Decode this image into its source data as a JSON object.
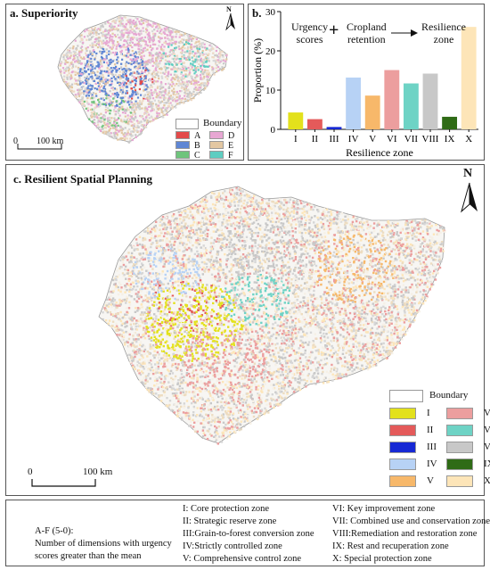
{
  "panel_a": {
    "title": "a. Superiority",
    "north": "N",
    "scale_zero": "0",
    "scale_label": "100 km",
    "legend": {
      "boundary": "Boundary",
      "items": [
        {
          "label": "A",
          "color": "#e34a4a"
        },
        {
          "label": "D",
          "color": "#e7a7d3"
        },
        {
          "label": "B",
          "color": "#5f86d4"
        },
        {
          "label": "E",
          "color": "#e3c7a2"
        },
        {
          "label": "C",
          "color": "#6fc47c"
        },
        {
          "label": "F",
          "color": "#5ecdc1"
        }
      ]
    }
  },
  "panel_b": {
    "title": "b.",
    "flow": {
      "step1": "Urgency\nscores",
      "plus": "+",
      "step2": "Cropland\nretention",
      "step3": "Resilience\nzone"
    },
    "chart_data": {
      "type": "bar",
      "categories": [
        "I",
        "II",
        "III",
        "IV",
        "V",
        "VI",
        "VII",
        "VIII",
        "IX",
        "X"
      ],
      "values": [
        4.3,
        2.6,
        0.6,
        13.2,
        8.6,
        15.1,
        11.7,
        14.2,
        3.2,
        26.1
      ],
      "colors": [
        "#e3e11c",
        "#e45a5a",
        "#1628d4",
        "#b7d2f5",
        "#f7b86a",
        "#ec9e9e",
        "#6ed3c5",
        "#c8c8c8",
        "#2f6b16",
        "#fde5b8"
      ],
      "xlabel": "Resilience zone",
      "ylabel": "Proportion (%)",
      "ylim": [
        0,
        30
      ],
      "yticks": [
        "0",
        "10",
        "20",
        "30"
      ]
    }
  },
  "panel_c": {
    "title": "c. Resilient Spatial Planning",
    "north": "N",
    "scale_zero": "0",
    "scale_label": "100 km",
    "legend": {
      "boundary": "Boundary",
      "items": [
        {
          "label": "I",
          "color": "#e3e11c"
        },
        {
          "label": "VI",
          "color": "#ec9e9e"
        },
        {
          "label": "II",
          "color": "#e45a5a"
        },
        {
          "label": "VII",
          "color": "#6ed3c5"
        },
        {
          "label": "III",
          "color": "#1628d4"
        },
        {
          "label": "VIII",
          "color": "#c8c8c8"
        },
        {
          "label": "IV",
          "color": "#b7d2f5"
        },
        {
          "label": "IX",
          "color": "#2f6b16"
        },
        {
          "label": "V",
          "color": "#f7b86a"
        },
        {
          "label": "X",
          "color": "#fde5b8"
        }
      ]
    }
  },
  "explanation": {
    "af_title": "A-F (5-0):",
    "af_text1": "Number of dimensions with urgency",
    "af_text2": "scores greater than the mean",
    "zones_left": [
      "I:  Core protection zone",
      "II: Strategic reserve zone",
      "III:Grain-to-forest conversion zone",
      "IV:Strictly controlled zone",
      "V:  Comprehensive control zone"
    ],
    "zones_right": [
      "VI:   Key improvement zone",
      "VII: Combined use and conservation zone",
      "VIII:Remediation and restoration zone",
      "IX:  Rest and recuperation zone",
      "X:   Special protection zone"
    ]
  }
}
